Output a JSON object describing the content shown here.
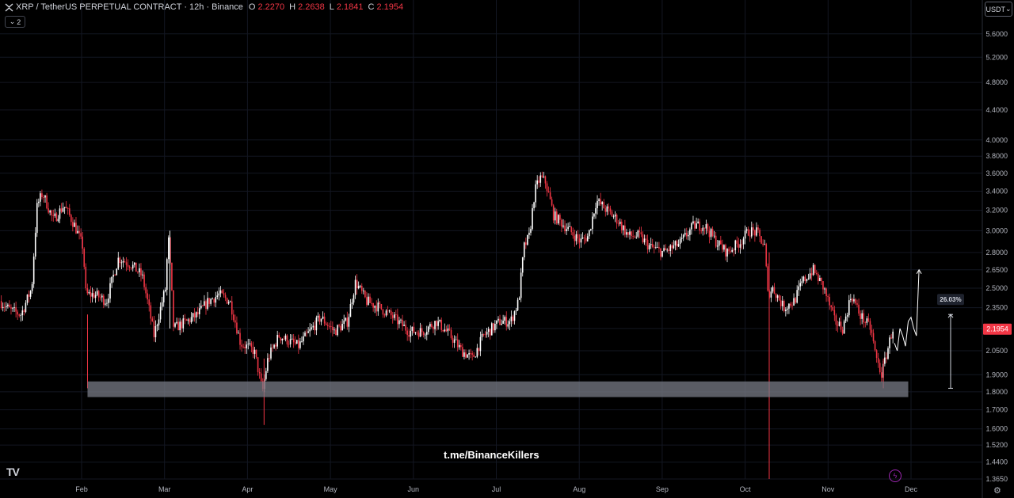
{
  "header": {
    "title": "XRP / TetherUS PERPETUAL CONTRACT · 12h · Binance",
    "open_label": "O",
    "open": "2.2270",
    "high_label": "H",
    "high": "2.2638",
    "low_label": "L",
    "low": "2.1841",
    "close_label": "C",
    "close": "2.1954",
    "collapse_count": "2"
  },
  "currency_button": "USDT",
  "watermark": "t.me/BinanceKillers",
  "logo": "TV",
  "colors": {
    "up": "#ffffff",
    "down": "#f23645",
    "zone": "#787b86",
    "last_price": "#f23645"
  },
  "chart_data": {
    "type": "candlestick",
    "scale": "log",
    "ylim": [
      1.365,
      5.9
    ],
    "y_ticks": [
      "5.6000",
      "5.2000",
      "4.8000",
      "4.4000",
      "4.0000",
      "3.8000",
      "3.6000",
      "3.4000",
      "3.2000",
      "3.0000",
      "2.8000",
      "2.6500",
      "2.5000",
      "2.3500",
      "2.2000",
      "2.0500",
      "1.9000",
      "1.8000",
      "1.7000",
      "1.6000",
      "1.5200",
      "1.4400",
      "1.3650"
    ],
    "x_ticks": [
      "Feb",
      "Mar",
      "Apr",
      "May",
      "Jun",
      "Jul",
      "Aug",
      "Sep",
      "Oct",
      "Nov",
      "Dec"
    ],
    "last_price": "2.1954",
    "measure_label": "26.03%",
    "support_zone": {
      "low": 1.77,
      "high": 1.86
    },
    "measure_range": {
      "low": 1.82,
      "high": 2.3
    },
    "price_path": [
      [
        "Jan 2",
        2.4
      ],
      [
        "Jan 6",
        2.33
      ],
      [
        "Jan 10",
        2.3
      ],
      [
        "Jan 14",
        2.5
      ],
      [
        "Jan 16",
        3.25
      ],
      [
        "Jan 18",
        3.38
      ],
      [
        "Jan 22",
        3.1
      ],
      [
        "Jan 26",
        3.25
      ],
      [
        "Jan 30",
        3.05
      ],
      [
        "Feb 2",
        2.85
      ],
      [
        "Feb 3",
        2.45
      ],
      [
        "Feb 6",
        2.45
      ],
      [
        "Feb 10",
        2.4
      ],
      [
        "Feb 14",
        2.75
      ],
      [
        "Feb 18",
        2.7
      ],
      [
        "Feb 22",
        2.6
      ],
      [
        "Feb 26",
        2.15
      ],
      [
        "Mar 2",
        2.5
      ],
      [
        "Mar 3",
        2.95
      ],
      [
        "Mar 5",
        2.2
      ],
      [
        "Mar 10",
        2.25
      ],
      [
        "Mar 14",
        2.3
      ],
      [
        "Mar 18",
        2.4
      ],
      [
        "Mar 22",
        2.45
      ],
      [
        "Mar 26",
        2.4
      ],
      [
        "Mar 30",
        2.1
      ],
      [
        "Apr 4",
        2.05
      ],
      [
        "Apr 7",
        1.8
      ],
      [
        "Apr 9",
        2.0
      ],
      [
        "Apr 13",
        2.15
      ],
      [
        "Apr 20",
        2.08
      ],
      [
        "Apr 25",
        2.2
      ],
      [
        "Apr 28",
        2.28
      ],
      [
        "May 3",
        2.18
      ],
      [
        "May 8",
        2.25
      ],
      [
        "May 11",
        2.55
      ],
      [
        "May 15",
        2.4
      ],
      [
        "May 20",
        2.35
      ],
      [
        "May 25",
        2.28
      ],
      [
        "May 31",
        2.18
      ],
      [
        "Jun 5",
        2.18
      ],
      [
        "Jun 10",
        2.25
      ],
      [
        "Jun 15",
        2.15
      ],
      [
        "Jun 19",
        2.05
      ],
      [
        "Jun 23",
        2.0
      ],
      [
        "Jun 27",
        2.15
      ],
      [
        "Jul 3",
        2.25
      ],
      [
        "Jul 7",
        2.25
      ],
      [
        "Jul 10",
        2.4
      ],
      [
        "Jul 12",
        2.85
      ],
      [
        "Jul 14",
        2.95
      ],
      [
        "Jul 16",
        3.4
      ],
      [
        "Jul 18",
        3.55
      ],
      [
        "Jul 20",
        3.5
      ],
      [
        "Jul 23",
        3.15
      ],
      [
        "Jul 27",
        3.05
      ],
      [
        "Aug 2",
        2.9
      ],
      [
        "Aug 5",
        2.95
      ],
      [
        "Aug 8",
        3.3
      ],
      [
        "Aug 12",
        3.2
      ],
      [
        "Aug 16",
        3.1
      ],
      [
        "Aug 20",
        2.95
      ],
      [
        "Aug 24",
        2.95
      ],
      [
        "Aug 28",
        2.85
      ],
      [
        "Sep 2",
        2.8
      ],
      [
        "Sep 8",
        2.88
      ],
      [
        "Sep 13",
        3.05
      ],
      [
        "Sep 17",
        3.05
      ],
      [
        "Sep 21",
        2.9
      ],
      [
        "Sep 25",
        2.8
      ],
      [
        "Sep 30",
        2.9
      ],
      [
        "Oct 3",
        3.0
      ],
      [
        "Oct 6",
        2.98
      ],
      [
        "Oct 9",
        2.85
      ],
      [
        "Oct 10",
        2.45
      ],
      [
        "Oct 12",
        2.5
      ],
      [
        "Oct 16",
        2.35
      ],
      [
        "Oct 20",
        2.4
      ],
      [
        "Oct 23",
        2.55
      ],
      [
        "Oct 27",
        2.65
      ],
      [
        "Oct 31",
        2.5
      ],
      [
        "Nov 4",
        2.25
      ],
      [
        "Nov 7",
        2.2
      ],
      [
        "Nov 10",
        2.45
      ],
      [
        "Nov 13",
        2.3
      ],
      [
        "Nov 17",
        2.2
      ],
      [
        "Nov 19",
        2.0
      ],
      [
        "Nov 21",
        1.9
      ],
      [
        "Nov 23",
        2.05
      ],
      [
        "Nov 25",
        2.2
      ]
    ],
    "projection_path": [
      [
        "Nov 25",
        2.1
      ],
      [
        "Nov 26",
        2.05
      ],
      [
        "Nov 27",
        2.2
      ],
      [
        "Nov 28",
        2.15
      ],
      [
        "Nov 29",
        2.08
      ],
      [
        "Nov 30",
        2.25
      ],
      [
        "Dec 1",
        2.28
      ],
      [
        "Dec 2",
        2.2
      ],
      [
        "Dec 3",
        2.15
      ],
      [
        "Dec 4",
        2.65
      ]
    ]
  }
}
